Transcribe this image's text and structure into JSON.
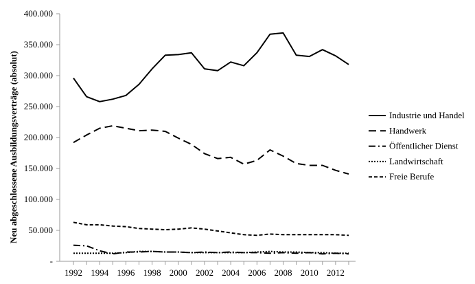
{
  "chart_data": {
    "type": "line",
    "title": "",
    "xlabel": "",
    "ylabel": "Neu abgeschlossene Ausbildungsverträge (absolut)",
    "x": [
      1992,
      1993,
      1994,
      1995,
      1996,
      1997,
      1998,
      1999,
      2000,
      2001,
      2002,
      2003,
      2004,
      2005,
      2006,
      2007,
      2008,
      2009,
      2010,
      2011,
      2012,
      2013
    ],
    "xticks": [
      "1992",
      "1994",
      "1996",
      "1998",
      "2000",
      "2002",
      "2004",
      "2006",
      "2008",
      "2010",
      "2012"
    ],
    "ylim": [
      0,
      400000
    ],
    "yticks": [
      {
        "value": 0,
        "label": "-"
      },
      {
        "value": 50000,
        "label": "50.000"
      },
      {
        "value": 100000,
        "label": "100.000"
      },
      {
        "value": 150000,
        "label": "150.000"
      },
      {
        "value": 200000,
        "label": "200.000"
      },
      {
        "value": 250000,
        "label": "250.000"
      },
      {
        "value": 300000,
        "label": "300.000"
      },
      {
        "value": 350000,
        "label": "350.000"
      },
      {
        "value": 400000,
        "label": "400.000"
      }
    ],
    "grid": false,
    "legend_position": "right",
    "series": [
      {
        "name": "Industrie und Handel",
        "dash": "solid",
        "values": [
          296000,
          266000,
          258000,
          262000,
          268000,
          286000,
          311000,
          333000,
          334000,
          337000,
          311000,
          308000,
          322000,
          316000,
          337000,
          367000,
          369000,
          333000,
          331000,
          342000,
          332000,
          318000
        ]
      },
      {
        "name": "Handwerk",
        "dash": "long-dash",
        "values": [
          192000,
          204000,
          215000,
          219000,
          215000,
          211000,
          212000,
          210000,
          199000,
          189000,
          174000,
          166000,
          168000,
          157000,
          163000,
          180000,
          170000,
          158000,
          155000,
          155000,
          147000,
          141000
        ]
      },
      {
        "name": "Öffentlicher Dienst",
        "dash": "dash-dot",
        "values": [
          26000,
          25000,
          17000,
          12000,
          15000,
          15000,
          16000,
          15000,
          15000,
          14000,
          15000,
          14000,
          15000,
          14000,
          14000,
          13000,
          14000,
          13000,
          14000,
          12000,
          13000,
          12000
        ]
      },
      {
        "name": "Landwirtschaft",
        "dash": "dotted",
        "values": [
          13000,
          13000,
          13000,
          13000,
          14000,
          16000,
          16000,
          15000,
          15000,
          14000,
          14000,
          14000,
          14000,
          14000,
          15000,
          16000,
          15000,
          15000,
          14000,
          14000,
          13000,
          13000
        ]
      },
      {
        "name": "Freie Berufe",
        "dash": "short-dash",
        "values": [
          63000,
          59000,
          59000,
          57000,
          56000,
          53000,
          52000,
          51000,
          52000,
          54000,
          52000,
          49000,
          46000,
          43000,
          42000,
          44000,
          43000,
          43000,
          43000,
          43000,
          43000,
          42000
        ]
      }
    ]
  }
}
